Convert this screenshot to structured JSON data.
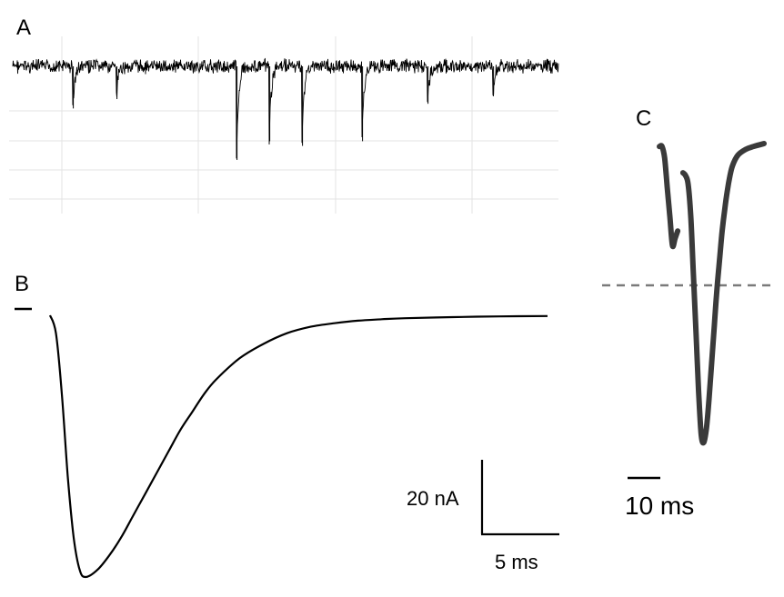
{
  "panel_labels": {
    "a": "A",
    "b": "B",
    "c": "C"
  },
  "colors": {
    "trace_a": "#000000",
    "trace_b": "#000000",
    "trace_c": "#3a3a3a",
    "grid": "#e3e3e3",
    "threshold": "#7a7a7a"
  },
  "chart_data": [
    {
      "type": "line",
      "panel": "A",
      "title": "",
      "xlabel": "",
      "ylabel": "",
      "grid": true,
      "series": [
        {
          "name": "",
          "baseline": 0,
          "events": [
            {
              "x": 0.11,
              "y": -0.45
            },
            {
              "x": 0.19,
              "y": -0.35
            },
            {
              "x": 0.41,
              "y": -1.0
            },
            {
              "x": 0.47,
              "y": -0.8
            },
            {
              "x": 0.53,
              "y": -0.85
            },
            {
              "x": 0.64,
              "y": -0.8
            },
            {
              "x": 0.76,
              "y": -0.4
            },
            {
              "x": 0.88,
              "y": -0.3
            }
          ]
        }
      ]
    },
    {
      "type": "line",
      "panel": "B",
      "title": "",
      "xlabel": "",
      "ylabel": "",
      "scale_bars": {
        "y_label": "20 nA",
        "x_label": "5 ms",
        "y_value": 20,
        "x_value": 5
      },
      "series": [
        {
          "name": "",
          "x": [
            0,
            0.5,
            1,
            1.5,
            2,
            2.5,
            3,
            4,
            5,
            6,
            7,
            8,
            9,
            10,
            11,
            12,
            13,
            14,
            16,
            18,
            20,
            22,
            24,
            26,
            28,
            30,
            34,
            38,
            42
          ],
          "y": [
            0,
            -5,
            -22,
            -45,
            -62,
            -71,
            -73,
            -71,
            -67,
            -62,
            -56,
            -50,
            -44,
            -38,
            -32,
            -27,
            -22,
            -18,
            -12,
            -8,
            -5,
            -3.2,
            -2.2,
            -1.5,
            -1.1,
            -0.8,
            -0.5,
            -0.3,
            -0.2
          ]
        }
      ]
    },
    {
      "type": "line",
      "panel": "C",
      "title": "",
      "xlabel": "",
      "ylabel": "",
      "threshold_line": true,
      "scale_bars": {
        "x_label": "10 ms",
        "x_value": 10
      },
      "series": [
        {
          "name": "",
          "x": [
            0,
            1,
            2,
            3,
            4,
            5,
            6,
            7
          ],
          "y": [
            -2,
            -2,
            -10,
            -30,
            -50,
            -70,
            -65,
            -60
          ]
        },
        {
          "name": "",
          "x": [
            9,
            10,
            11,
            12,
            13,
            14,
            15,
            16,
            17,
            18,
            19,
            20,
            21,
            22,
            23,
            24,
            25,
            26,
            27,
            28,
            30,
            33,
            36,
            40
          ],
          "y": [
            -20,
            -22,
            -28,
            -50,
            -90,
            -130,
            -170,
            -200,
            -205,
            -195,
            -175,
            -150,
            -125,
            -100,
            -80,
            -60,
            -45,
            -32,
            -22,
            -15,
            -8,
            -4,
            -2,
            0
          ]
        }
      ]
    }
  ]
}
